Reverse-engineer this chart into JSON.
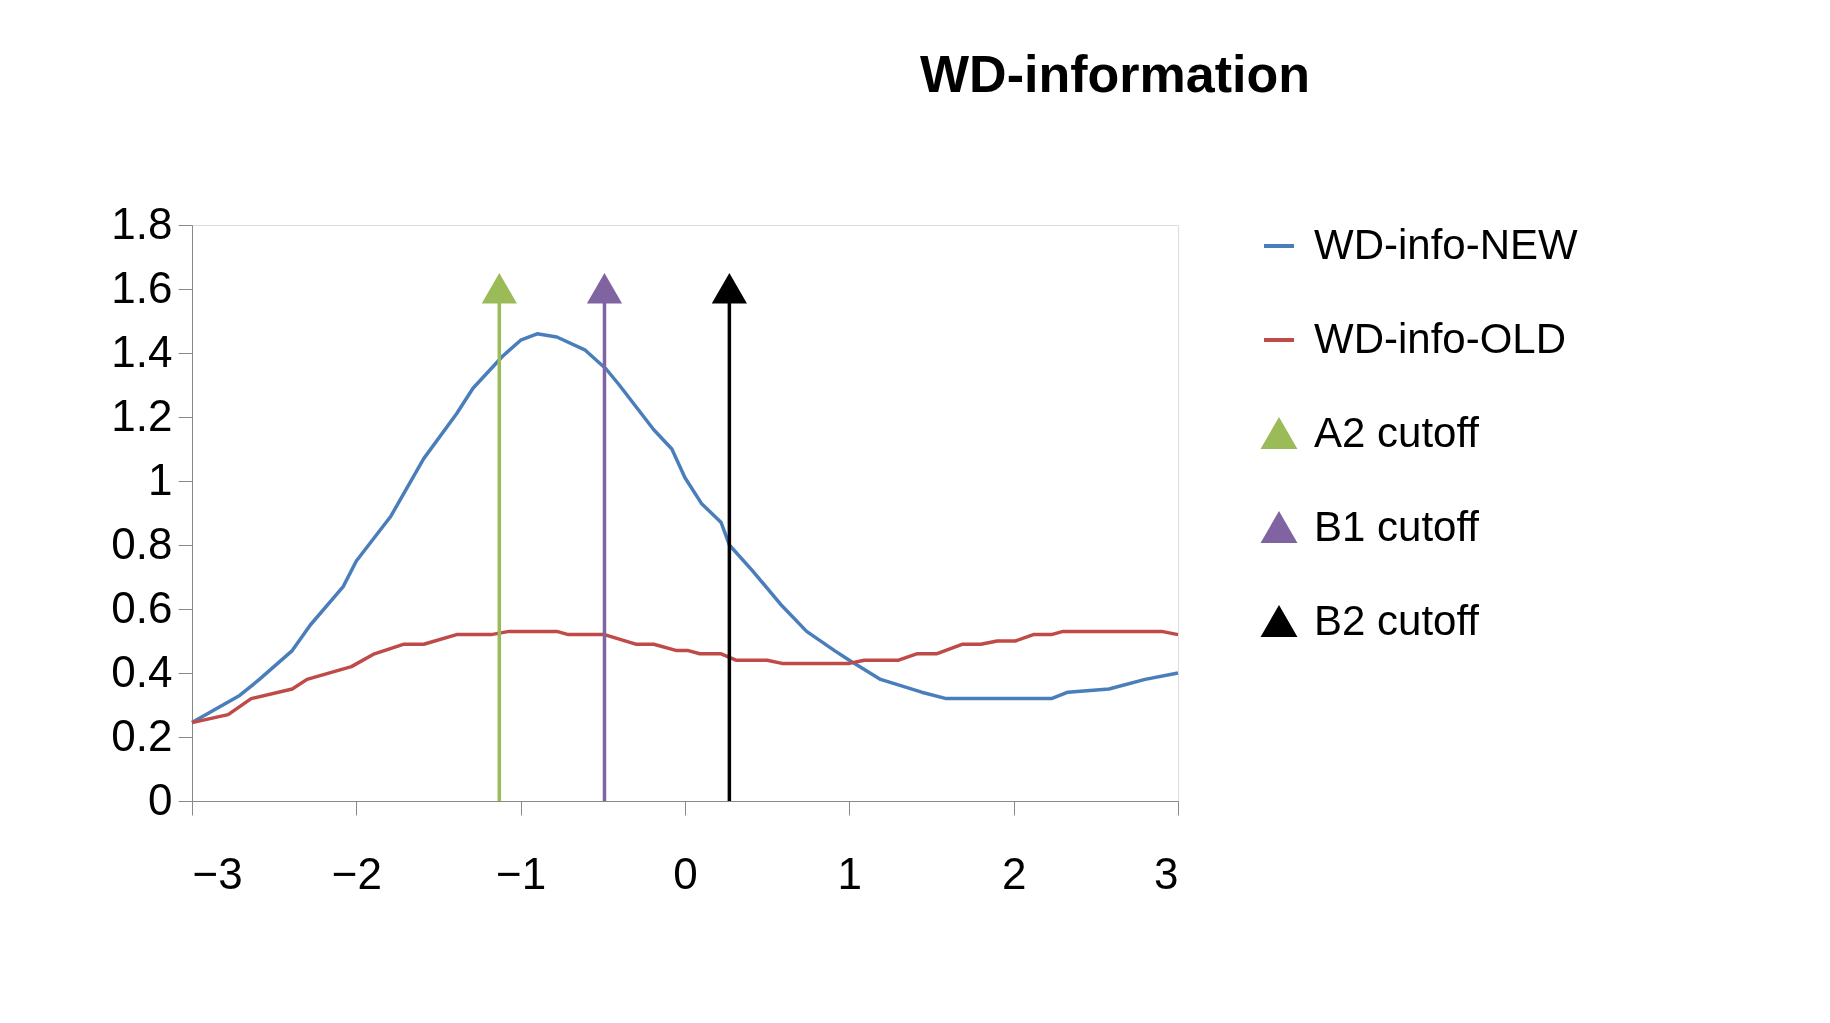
{
  "chart_data": {
    "type": "line",
    "title": "WD-information",
    "xlim": [
      -3,
      3
    ],
    "xticks": [
      -3,
      -2,
      -1,
      0,
      1,
      2,
      3
    ],
    "ylim": [
      0,
      1.8
    ],
    "yticks": [
      0,
      0.2,
      0.4,
      0.6,
      0.8,
      1,
      1.2,
      1.4,
      1.6,
      1.8
    ],
    "grid": false,
    "legend": "right",
    "line_style": "solid",
    "series": [
      {
        "name": "WD-info-NEW",
        "color": "#4a7ebb",
        "marker": "none",
        "x": [
          -3,
          -2.71,
          -2.59,
          -2.39,
          -2.28,
          -2.08,
          -2.0,
          -1.79,
          -1.59,
          -1.39,
          -1.29,
          -1.11,
          -1.0,
          -0.9,
          -0.78,
          -0.61,
          -0.48,
          -0.4,
          -0.19,
          -0.08,
          0,
          0.1,
          0.22,
          0.27,
          0.41,
          0.59,
          0.74,
          0.91,
          1.0,
          1.19,
          1.44,
          1.59,
          2.23,
          2.33,
          2.58,
          2.8,
          3
        ],
        "values": [
          0.245,
          0.33,
          0.38,
          0.47,
          0.55,
          0.67,
          0.75,
          0.89,
          1.07,
          1.21,
          1.29,
          1.39,
          1.44,
          1.46,
          1.45,
          1.41,
          1.35,
          1.3,
          1.16,
          1.1,
          1.01,
          0.93,
          0.87,
          0.8,
          0.72,
          0.61,
          0.53,
          0.47,
          0.44,
          0.38,
          0.34,
          0.32,
          0.32,
          0.34,
          0.35,
          0.38,
          0.4
        ]
      },
      {
        "name": "WD-info-OLD",
        "color": "#be4b48",
        "marker": "none",
        "x": [
          -3,
          -2.78,
          -2.64,
          -2.39,
          -2.3,
          -2.03,
          -1.89,
          -1.71,
          -1.59,
          -1.39,
          -1.18,
          -1.07,
          -0.78,
          -0.71,
          -0.49,
          -0.3,
          -0.19,
          -0.05,
          0.02,
          0.09,
          0.22,
          0.31,
          0.5,
          0.59,
          1.0,
          1.09,
          1.3,
          1.41,
          1.53,
          1.69,
          1.8,
          1.9,
          2.01,
          2.12,
          2.23,
          2.3,
          2.9,
          3
        ],
        "values": [
          0.245,
          0.27,
          0.32,
          0.35,
          0.38,
          0.42,
          0.46,
          0.49,
          0.49,
          0.52,
          0.52,
          0.53,
          0.53,
          0.52,
          0.52,
          0.49,
          0.49,
          0.47,
          0.47,
          0.46,
          0.46,
          0.44,
          0.44,
          0.43,
          0.43,
          0.44,
          0.44,
          0.46,
          0.46,
          0.49,
          0.49,
          0.5,
          0.5,
          0.52,
          0.52,
          0.53,
          0.53,
          0.52
        ]
      },
      {
        "name": "A2 cutoff",
        "color": "#9bbb59",
        "marker": "triangle",
        "x": [
          -1.13,
          -1.13
        ],
        "values": [
          0,
          1.6
        ]
      },
      {
        "name": "B1 cutoff",
        "color": "#8064a2",
        "marker": "triangle",
        "x": [
          -0.49,
          -0.49
        ],
        "values": [
          0,
          1.6
        ]
      },
      {
        "name": "B2 cutoff",
        "color": "#000000",
        "marker": "triangle",
        "x": [
          0.27,
          0.27
        ],
        "values": [
          0,
          1.6
        ]
      }
    ]
  }
}
